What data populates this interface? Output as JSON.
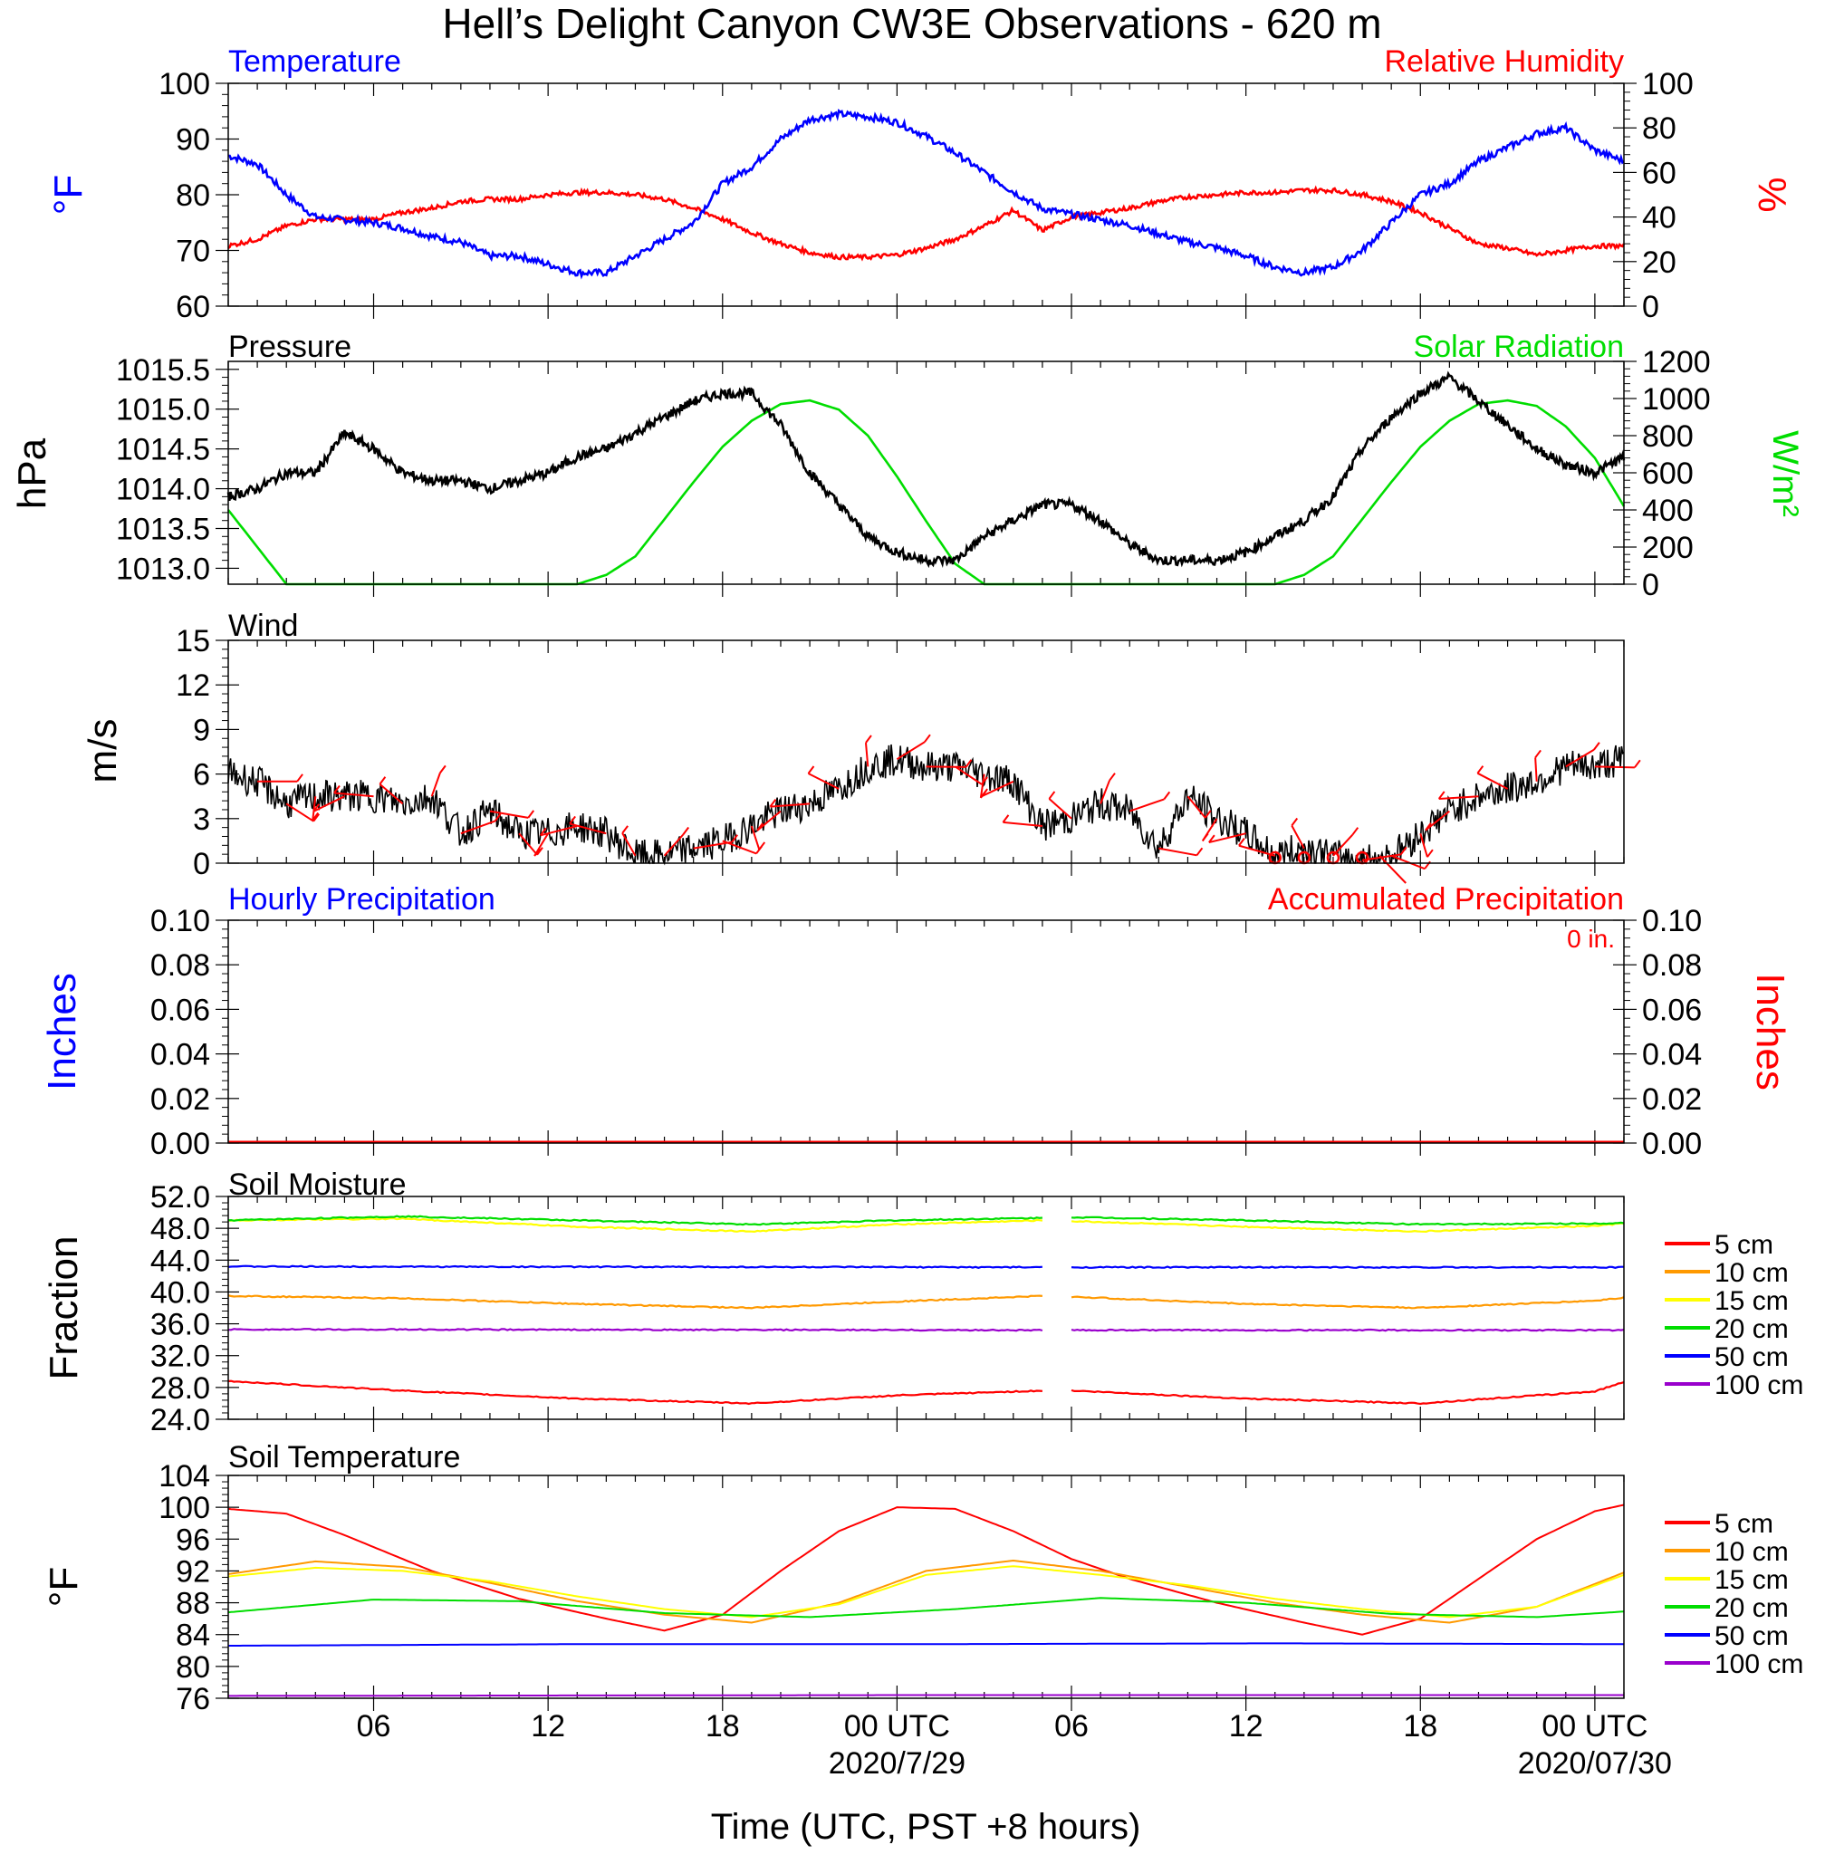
{
  "title": "Hell’s Delight Canyon CW3E Observations - 620 m",
  "x_axis": {
    "label": "Time (UTC, PST +8 hours)",
    "range_hours": [
      0,
      48
    ],
    "ticks": [
      {
        "hour": 5,
        "label": "06",
        "date": ""
      },
      {
        "hour": 11,
        "label": "12",
        "date": ""
      },
      {
        "hour": 17,
        "label": "18",
        "date": ""
      },
      {
        "hour": 23,
        "label": "00 UTC",
        "date": "2020/7/29"
      },
      {
        "hour": 29,
        "label": "06",
        "date": ""
      },
      {
        "hour": 35,
        "label": "12",
        "date": ""
      },
      {
        "hour": 41,
        "label": "18",
        "date": ""
      },
      {
        "hour": 47,
        "label": "00 UTC",
        "date": "2020/07/30"
      }
    ]
  },
  "colors": {
    "temperature": "#0000ff",
    "humidity": "#ff0000",
    "pressure": "#000000",
    "solar": "#00dd00",
    "wind": "#000000",
    "barbs": "#ff0000",
    "hourly_precip": "#0000ff",
    "accum_precip": "#ff0000",
    "depths": [
      "#ff0000",
      "#ff9900",
      "#ffff00",
      "#00dd00",
      "#0000ff",
      "#9900cc"
    ]
  },
  "depth_labels": [
    "5 cm",
    "10 cm",
    "15 cm",
    "20 cm",
    "50 cm",
    "100 cm"
  ],
  "panels": {
    "temp_rh": {
      "left_title": "Temperature",
      "right_title": "Relative Humidity",
      "left_unit": "°F",
      "right_unit": "%",
      "left_ticks": [
        "60",
        "70",
        "80",
        "90",
        "100"
      ],
      "right_ticks": [
        "0",
        "20",
        "40",
        "60",
        "80",
        "100"
      ]
    },
    "pressure_solar": {
      "left_title": "Pressure",
      "right_title": "Solar Radiation",
      "left_unit": "hPa",
      "right_unit": "W/m²",
      "left_ticks": [
        "1013.0",
        "1013.5",
        "1014.0",
        "1014.5",
        "1015.0",
        "1015.5"
      ],
      "right_ticks": [
        "0",
        "200",
        "400",
        "600",
        "800",
        "1000",
        "1200"
      ]
    },
    "wind": {
      "left_title": "Wind",
      "left_unit": "m/s",
      "left_ticks": [
        "0",
        "3",
        "6",
        "9",
        "12",
        "15"
      ]
    },
    "precip": {
      "left_title": "Hourly Precipitation",
      "right_title": "Accumulated Precipitation",
      "total_label": "0 in.",
      "left_unit": "Inches",
      "right_unit": "Inches",
      "left_ticks": [
        "0.00",
        "0.02",
        "0.04",
        "0.06",
        "0.08",
        "0.10"
      ],
      "right_ticks": [
        "0.00",
        "0.02",
        "0.04",
        "0.06",
        "0.08",
        "0.10"
      ]
    },
    "soil_moisture": {
      "left_title": "Soil Moisture",
      "left_unit": "Fraction",
      "left_ticks": [
        "24.0",
        "28.0",
        "32.0",
        "36.0",
        "40.0",
        "44.0",
        "48.0",
        "52.0"
      ]
    },
    "soil_temp": {
      "left_title": "Soil Temperature",
      "left_unit": "°F",
      "left_ticks": [
        "76",
        "80",
        "84",
        "88",
        "92",
        "96",
        "100",
        "104"
      ]
    }
  },
  "chart_data": [
    {
      "type": "line",
      "panel": "temp_rh",
      "x_unit": "hours since start of plotted period",
      "series": [
        {
          "name": "Temperature",
          "axis": "left",
          "ylim": [
            60,
            100
          ],
          "x": [
            0,
            1,
            2,
            3,
            4,
            5,
            6,
            7,
            8,
            9,
            10,
            11,
            12,
            13,
            14,
            15,
            16,
            17,
            18,
            19,
            20,
            21,
            22,
            23,
            24,
            25,
            26,
            27,
            28,
            29,
            30,
            31,
            32,
            33,
            34,
            35,
            36,
            37,
            38,
            39,
            40,
            41,
            42,
            43,
            44,
            45,
            46,
            47,
            48
          ],
          "values": [
            87,
            85.5,
            80,
            76,
            75.5,
            75,
            74,
            72.5,
            71.5,
            69,
            69,
            67.5,
            66,
            66,
            69,
            72,
            75,
            82,
            85,
            90,
            93.5,
            94.5,
            94,
            93,
            90.5,
            87.5,
            84,
            80.5,
            77.5,
            76.5,
            75.5,
            74.5,
            73,
            71.5,
            70.5,
            69,
            67,
            66,
            67,
            70,
            75,
            80,
            82,
            86,
            88.5,
            91,
            92,
            88,
            86
          ]
        },
        {
          "name": "Relative Humidity",
          "axis": "right",
          "ylim": [
            0,
            100
          ],
          "x": [
            0,
            1,
            2,
            3,
            4,
            5,
            6,
            7,
            8,
            9,
            10,
            11,
            12,
            13,
            14,
            15,
            16,
            17,
            18,
            19,
            20,
            21,
            22,
            23,
            24,
            25,
            26,
            27,
            28,
            29,
            30,
            31,
            32,
            33,
            34,
            35,
            36,
            37,
            38,
            39,
            40,
            41,
            42,
            43,
            44,
            45,
            46,
            47,
            48
          ],
          "values": [
            27,
            30,
            36,
            39,
            39,
            39,
            42,
            44,
            47,
            48,
            48,
            50,
            51,
            51,
            50,
            48,
            44,
            39,
            33,
            28,
            24,
            22,
            22,
            23,
            26,
            30,
            36,
            43,
            34,
            40,
            42,
            44,
            47,
            49,
            50,
            51,
            51,
            52,
            52,
            50,
            47,
            42,
            35,
            28,
            26,
            23,
            25,
            27,
            27
          ]
        }
      ]
    },
    {
      "type": "line",
      "panel": "pressure_solar",
      "series": [
        {
          "name": "Pressure",
          "axis": "left",
          "ylim": [
            1012.8,
            1015.6
          ],
          "x": [
            0,
            1,
            2,
            3,
            4,
            5,
            6,
            7,
            8,
            9,
            10,
            11,
            12,
            13,
            14,
            15,
            16,
            17,
            18,
            19,
            20,
            21,
            22,
            23,
            24,
            25,
            26,
            27,
            28,
            29,
            30,
            31,
            32,
            33,
            34,
            35,
            36,
            37,
            38,
            39,
            40,
            41,
            42,
            43,
            44,
            45,
            46,
            47,
            48
          ],
          "values": [
            1013.9,
            1014.0,
            1014.2,
            1014.2,
            1014.7,
            1014.5,
            1014.2,
            1014.1,
            1014.1,
            1014.0,
            1014.1,
            1014.2,
            1014.4,
            1014.5,
            1014.7,
            1014.9,
            1015.1,
            1015.2,
            1015.2,
            1014.8,
            1014.2,
            1013.8,
            1013.4,
            1013.2,
            1013.1,
            1013.1,
            1013.4,
            1013.6,
            1013.8,
            1013.8,
            1013.6,
            1013.3,
            1013.1,
            1013.1,
            1013.1,
            1013.2,
            1013.4,
            1013.6,
            1013.9,
            1014.5,
            1014.9,
            1015.2,
            1015.4,
            1015.1,
            1014.8,
            1014.5,
            1014.3,
            1014.2,
            1014.4
          ]
        },
        {
          "name": "Solar Radiation",
          "axis": "right",
          "ylim": [
            0,
            1200
          ],
          "x": [
            0,
            1,
            2,
            3,
            4,
            5,
            6,
            7,
            8,
            9,
            10,
            11,
            12,
            13,
            14,
            15,
            16,
            17,
            18,
            19,
            20,
            21,
            22,
            23,
            24,
            25,
            26,
            27,
            28,
            29,
            30,
            31,
            32,
            33,
            34,
            35,
            36,
            37,
            38,
            39,
            40,
            41,
            42,
            43,
            44,
            45,
            46,
            47,
            48
          ],
          "values": [
            400,
            200,
            0,
            0,
            0,
            0,
            0,
            0,
            0,
            0,
            0,
            0,
            0,
            50,
            150,
            350,
            550,
            740,
            880,
            970,
            990,
            940,
            800,
            580,
            340,
            110,
            0,
            0,
            0,
            0,
            0,
            0,
            0,
            0,
            0,
            0,
            0,
            50,
            150,
            350,
            550,
            740,
            880,
            970,
            990,
            960,
            850,
            680,
            420
          ]
        }
      ]
    },
    {
      "type": "line",
      "panel": "wind",
      "series": [
        {
          "name": "Wind",
          "axis": "left",
          "ylim": [
            0,
            15
          ],
          "x": [
            0,
            1,
            2,
            3,
            4,
            5,
            6,
            7,
            8,
            9,
            10,
            11,
            12,
            13,
            14,
            15,
            16,
            17,
            18,
            19,
            20,
            21,
            22,
            23,
            24,
            25,
            26,
            27,
            28,
            29,
            30,
            31,
            32,
            33,
            34,
            35,
            36,
            37,
            38,
            39,
            40,
            41,
            42,
            43,
            44,
            45,
            46,
            47,
            48
          ],
          "values": [
            6,
            5.5,
            4,
            4.5,
            4.5,
            4.5,
            4,
            4.5,
            2,
            3.5,
            2,
            2,
            2.5,
            2,
            0.5,
            0.5,
            1,
            1.5,
            2.5,
            3.5,
            4,
            5,
            6.5,
            7,
            6.5,
            6.5,
            6,
            5.5,
            2.5,
            3,
            4,
            3.5,
            1,
            4.5,
            3,
            2,
            0.5,
            1,
            0.5,
            0.2,
            0.5,
            2,
            3.5,
            4.5,
            5,
            5.5,
            6.5,
            6.5,
            7
          ]
        }
      ],
      "barb_hours": [
        1,
        2,
        3,
        4,
        5,
        6,
        7,
        8,
        9,
        10,
        11,
        12,
        13,
        14,
        15,
        16,
        17,
        18,
        19,
        20,
        21,
        22,
        23,
        24,
        25,
        26,
        27,
        28,
        29,
        30,
        31,
        32,
        33,
        34,
        35,
        36,
        37,
        38,
        39,
        40,
        41,
        42,
        43,
        44,
        45,
        46,
        47
      ]
    },
    {
      "type": "line",
      "panel": "precip",
      "series": [
        {
          "name": "Hourly Precipitation",
          "axis": "left",
          "ylim": [
            0,
            0.1
          ],
          "x": [
            0,
            48
          ],
          "values": [
            0,
            0
          ]
        },
        {
          "name": "Accumulated Precipitation",
          "axis": "right",
          "ylim": [
            0,
            0.1
          ],
          "x": [
            0,
            48
          ],
          "values": [
            0,
            0
          ]
        }
      ]
    },
    {
      "type": "line",
      "panel": "soil_moisture",
      "ylim": [
        24,
        52
      ],
      "gap_hours": [
        28,
        29
      ],
      "series": [
        {
          "name": "5 cm",
          "x": [
            0,
            6,
            12,
            18,
            23,
            28,
            29,
            35,
            41,
            47,
            48
          ],
          "values": [
            28.8,
            27.6,
            26.6,
            26.0,
            27.0,
            27.6,
            27.6,
            26.6,
            26.0,
            27.5,
            28.7
          ]
        },
        {
          "name": "10 cm",
          "x": [
            0,
            6,
            12,
            18,
            23,
            28,
            29,
            35,
            41,
            47,
            48
          ],
          "values": [
            39.5,
            39.2,
            38.5,
            38.0,
            38.8,
            39.5,
            39.4,
            38.5,
            38.0,
            38.9,
            39.3
          ]
        },
        {
          "name": "15 cm",
          "x": [
            0,
            6,
            12,
            18,
            23,
            28,
            29,
            35,
            41,
            47,
            48
          ],
          "values": [
            49.0,
            49.2,
            48.2,
            47.6,
            48.5,
            49.0,
            48.9,
            48.2,
            47.6,
            48.3,
            48.6
          ]
        },
        {
          "name": "20 cm",
          "x": [
            0,
            6,
            12,
            18,
            23,
            28,
            29,
            35,
            41,
            47,
            48
          ],
          "values": [
            49.0,
            49.5,
            49.0,
            48.5,
            49.0,
            49.3,
            49.4,
            49.0,
            48.5,
            48.6,
            48.7
          ]
        },
        {
          "name": "50 cm",
          "x": [
            0,
            28,
            29,
            48
          ],
          "values": [
            43.2,
            43.1,
            43.1,
            43.1
          ]
        },
        {
          "name": "100 cm",
          "x": [
            0,
            28,
            29,
            48
          ],
          "values": [
            35.3,
            35.2,
            35.2,
            35.2
          ]
        }
      ]
    },
    {
      "type": "line",
      "panel": "soil_temp",
      "ylim": [
        76,
        104
      ],
      "series": [
        {
          "name": "5 cm",
          "x": [
            0,
            2,
            4,
            7,
            10,
            13,
            15,
            17,
            19,
            21,
            23,
            25,
            27,
            29,
            31,
            34,
            37,
            39,
            41,
            43,
            45,
            47,
            48
          ],
          "values": [
            99.8,
            99.2,
            96.5,
            92.0,
            88.5,
            86.0,
            84.5,
            86.5,
            92.0,
            97.0,
            100.0,
            99.8,
            97.0,
            93.5,
            91.0,
            88.0,
            85.5,
            84.0,
            86.0,
            91.0,
            96.0,
            99.5,
            100.3
          ]
        },
        {
          "name": "10 cm",
          "x": [
            0,
            3,
            6,
            9,
            12,
            15,
            18,
            21,
            24,
            27,
            30,
            33,
            36,
            39,
            42,
            45,
            48
          ],
          "values": [
            91.6,
            93.2,
            92.5,
            90.5,
            88.2,
            86.5,
            85.5,
            88.0,
            92.0,
            93.3,
            92.0,
            90.0,
            88.0,
            86.5,
            85.5,
            87.5,
            91.8
          ]
        },
        {
          "name": "15 cm",
          "x": [
            0,
            3,
            6,
            9,
            12,
            15,
            18,
            21,
            24,
            27,
            30,
            33,
            36,
            39,
            42,
            45,
            48
          ],
          "values": [
            91.3,
            92.4,
            92.0,
            90.7,
            88.8,
            87.2,
            86.2,
            87.8,
            91.5,
            92.6,
            91.5,
            90.2,
            88.5,
            87.2,
            86.2,
            87.5,
            91.5
          ]
        },
        {
          "name": "20 cm",
          "x": [
            0,
            5,
            10,
            15,
            20,
            25,
            30,
            35,
            40,
            45,
            48
          ],
          "values": [
            86.8,
            88.4,
            88.2,
            86.7,
            86.2,
            87.2,
            88.6,
            88.0,
            86.6,
            86.2,
            86.9
          ]
        },
        {
          "name": "50 cm",
          "x": [
            0,
            12,
            24,
            36,
            48
          ],
          "values": [
            82.6,
            82.8,
            82.8,
            82.9,
            82.8
          ]
        },
        {
          "name": "100 cm",
          "x": [
            0,
            24,
            48
          ],
          "values": [
            76.3,
            76.4,
            76.4
          ]
        }
      ]
    }
  ]
}
